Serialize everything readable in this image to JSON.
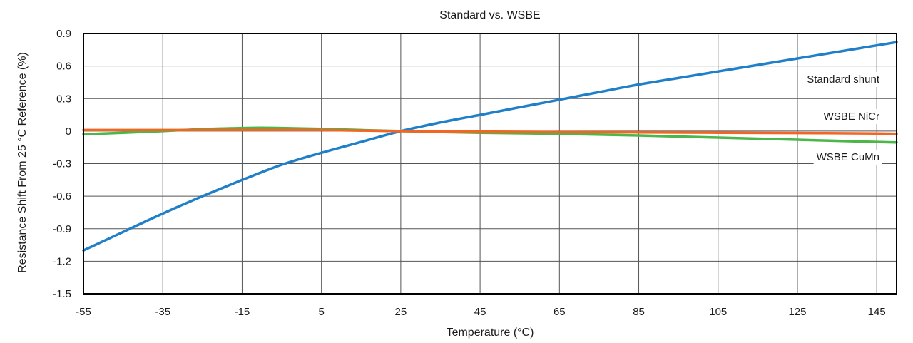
{
  "chart_data": {
    "type": "line",
    "title": "Standard vs. WSBE",
    "xlabel": "Temperature (°C)",
    "ylabel": "Resistance Shift From 25 °C Reference (%)",
    "xlim": [
      -55,
      150
    ],
    "ylim": [
      -1.5,
      0.9
    ],
    "x_ticks": [
      -55,
      -35,
      -15,
      5,
      25,
      45,
      65,
      85,
      105,
      125,
      145
    ],
    "x_tick_labels": [
      "-55",
      "-35",
      "-15",
      "5",
      "25",
      "45",
      "65",
      "85",
      "105",
      "125",
      "145"
    ],
    "y_ticks": [
      0.9,
      0.6,
      0.3,
      0,
      -0.3,
      -0.6,
      -0.9,
      -1.2,
      -1.5
    ],
    "y_tick_labels": [
      "0.9",
      "0.6",
      "0.3",
      "0",
      "-0.3",
      "-0.6",
      "-0.9",
      "-1.2",
      "-1.5"
    ],
    "grid": true,
    "series": [
      {
        "name": "Standard shunt",
        "label": "Standard shunt",
        "color": "#1f7fc8",
        "x": [
          -55,
          -45,
          -35,
          -25,
          -15,
          -5,
          5,
          15,
          25,
          35,
          45,
          55,
          65,
          75,
          85,
          95,
          105,
          115,
          125,
          135,
          145,
          150
        ],
        "y": [
          -1.1,
          -0.93,
          -0.76,
          -0.6,
          -0.45,
          -0.31,
          -0.2,
          -0.1,
          0.0,
          0.08,
          0.15,
          0.22,
          0.29,
          0.36,
          0.43,
          0.49,
          0.55,
          0.61,
          0.67,
          0.73,
          0.79,
          0.82
        ]
      },
      {
        "name": "WSBE NiCr",
        "label": "WSBE NiCr",
        "color": "#f26522",
        "x": [
          -55,
          -35,
          -15,
          5,
          25,
          45,
          65,
          85,
          105,
          125,
          145,
          150
        ],
        "y": [
          0.01,
          0.01,
          0.01,
          0.01,
          0.0,
          -0.005,
          -0.01,
          -0.012,
          -0.015,
          -0.018,
          -0.022,
          -0.025
        ]
      },
      {
        "name": "WSBE CuMn",
        "label": "WSBE CuMn",
        "color": "#4cb748",
        "x": [
          -55,
          -45,
          -35,
          -25,
          -15,
          -10,
          -5,
          5,
          15,
          25,
          35,
          45,
          65,
          85,
          105,
          125,
          145,
          150
        ],
        "y": [
          -0.03,
          -0.015,
          0.0,
          0.018,
          0.028,
          0.03,
          0.028,
          0.02,
          0.01,
          0.0,
          -0.008,
          -0.015,
          -0.025,
          -0.04,
          -0.06,
          -0.08,
          -0.1,
          -0.105
        ]
      }
    ]
  }
}
